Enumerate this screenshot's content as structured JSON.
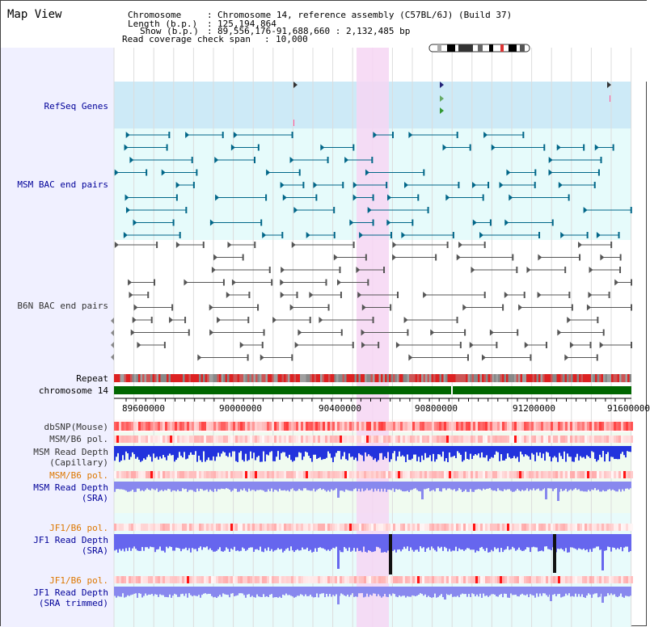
{
  "title": "Map View",
  "header": {
    "chromosome_label": "Chromosome",
    "chromosome_value": "Chromosome 14, reference assembly (C57BL/6J) (Build 37)",
    "length_label": "Length (b.p.)",
    "length_value": "125,194,864",
    "show_label": "Show (b.p.)",
    "show_value": "89,556,176-91,688,660 : 2,132,485 bp",
    "coverage_label": "Read coverage check span",
    "coverage_value": "10,000"
  },
  "tracks": {
    "refseq": "RefSeq Genes",
    "msm_bac": "MSM BAC end pairs",
    "b6n_bac": "B6N BAC end pairs",
    "repeat": "Repeat",
    "chromosome": "chromosome 14",
    "dbsnp": "dbSNP(Mouse)",
    "msm_b6_pol_1": "MSM/B6 pol.",
    "msm_read_depth_cap_1": "MSM Read Depth",
    "msm_read_depth_cap_2": "(Capillary)",
    "msm_b6_pol_2": "MSM/B6 pol.",
    "msm_read_depth_sra_1": "MSM Read Depth",
    "msm_read_depth_sra_2": "(SRA)",
    "jf1_b6_pol_1": "JF1/B6 pol.",
    "jf1_read_depth_sra_1": "JF1 Read Depth",
    "jf1_read_depth_sra_2": "(SRA)",
    "jf1_b6_pol_2": "JF1/B6 pol.",
    "jf1_read_depth_trim_1": "JF1 Read Depth",
    "jf1_read_depth_trim_2": "(SRA trimmed)"
  },
  "axis": {
    "ticks": [
      "89600000",
      "90000000",
      "90400000",
      "90800000",
      "91200000",
      "91600000"
    ]
  },
  "colors": {
    "refseq_bg": "#cdeaf7",
    "msm_bg": "#e6fbfb",
    "highlight": "#f6d6f3",
    "msm_feature": "#006688",
    "b6n_feature": "#555555",
    "chromosome_bar": "#006600",
    "read_depth_blue": "#3333ee",
    "pol_red": "#ff9999"
  }
}
